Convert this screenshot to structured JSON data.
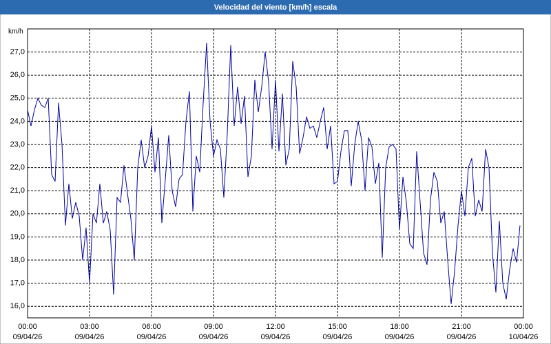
{
  "chart_data": {
    "type": "line",
    "title": "Velocidad del viento [km/h] escala",
    "y_unit": "km/h",
    "x": [
      0,
      10,
      20,
      30,
      40,
      50,
      60,
      70,
      80,
      90,
      100,
      110,
      120,
      130,
      140,
      150,
      160,
      170,
      180,
      190,
      200,
      210,
      220,
      230,
      240,
      250,
      260,
      270,
      280,
      290,
      300,
      310,
      320,
      330,
      340,
      350,
      360,
      370,
      380,
      390,
      400,
      410,
      420,
      430,
      440,
      450,
      460,
      470,
      480,
      490,
      500,
      510,
      520,
      530,
      540,
      550,
      560,
      570,
      580,
      590,
      600,
      610,
      620,
      630,
      640,
      650,
      660,
      670,
      680,
      690,
      700,
      710,
      720,
      730,
      740,
      750,
      760,
      770,
      780,
      790,
      800,
      810,
      820,
      830,
      840,
      850,
      860,
      870,
      880,
      890,
      900,
      910,
      920,
      930,
      940,
      950,
      960,
      970,
      980,
      990,
      1000,
      1010,
      1020,
      1030,
      1040,
      1050,
      1060,
      1070,
      1080,
      1090,
      1100,
      1110,
      1120,
      1130,
      1140,
      1150,
      1160,
      1170,
      1180,
      1190,
      1200,
      1210,
      1220,
      1230,
      1240,
      1250,
      1260,
      1270,
      1280,
      1290,
      1300,
      1310,
      1320,
      1330,
      1340,
      1350,
      1360,
      1370,
      1380,
      1390,
      1400,
      1410,
      1420,
      1430
    ],
    "series": [
      {
        "color": "#0000a0",
        "values": [
          24.5,
          23.8,
          24.5,
          25.0,
          24.7,
          24.6,
          25.0,
          21.7,
          21.4,
          24.8,
          23.0,
          19.5,
          21.3,
          19.8,
          20.5,
          19.9,
          18.0,
          19.4,
          17.0,
          20.0,
          19.6,
          21.3,
          19.6,
          20.1,
          19.3,
          16.5,
          20.7,
          20.5,
          22.1,
          20.9,
          19.8,
          18.0,
          22.0,
          23.2,
          22.0,
          22.5,
          23.8,
          21.8,
          23.3,
          19.6,
          21.5,
          23.4,
          21.0,
          20.3,
          21.5,
          21.7,
          24.0,
          25.3,
          20.1,
          22.5,
          21.8,
          24.8,
          27.4,
          24.0,
          22.5,
          23.2,
          22.8,
          20.7,
          23.5,
          27.3,
          23.8,
          25.5,
          23.9,
          25.1,
          21.6,
          22.5,
          25.8,
          24.4,
          25.5,
          27.0,
          25.7,
          22.8,
          25.8,
          22.7,
          25.2,
          22.1,
          22.8,
          26.6,
          25.5,
          22.6,
          23.3,
          24.2,
          23.7,
          23.8,
          23.3,
          24.0,
          24.6,
          22.8,
          23.8,
          21.3,
          21.4,
          22.7,
          23.6,
          23.6,
          21.2,
          23.0,
          24.0,
          23.2,
          21.0,
          23.3,
          22.9,
          21.3,
          22.2,
          18.1,
          22.0,
          22.9,
          23.0,
          22.8,
          19.3,
          21.6,
          20.5,
          18.7,
          18.5,
          22.7,
          20.5,
          18.3,
          17.8,
          20.6,
          21.8,
          21.4,
          19.6,
          20.1,
          18.0,
          16.1,
          17.5,
          19.5,
          21.0,
          19.9,
          22.0,
          22.4,
          19.9,
          20.6,
          20.1,
          22.8,
          22.0,
          18.3,
          16.6,
          19.7,
          17.0,
          16.3,
          17.6,
          18.5,
          17.9,
          19.5
        ]
      }
    ],
    "xlim": [
      0,
      1440
    ],
    "xticks": [
      {
        "value": 0,
        "label": "00:00",
        "date": "09/04/26"
      },
      {
        "value": 180,
        "label": "03:00",
        "date": "09/04/26"
      },
      {
        "value": 360,
        "label": "06:00",
        "date": "09/04/26"
      },
      {
        "value": 540,
        "label": "09:00",
        "date": "09/04/26"
      },
      {
        "value": 720,
        "label": "12:00",
        "date": "09/04/26"
      },
      {
        "value": 900,
        "label": "15:00",
        "date": "09/04/26"
      },
      {
        "value": 1080,
        "label": "18:00",
        "date": "09/04/26"
      },
      {
        "value": 1260,
        "label": "21:00",
        "date": "09/04/26"
      },
      {
        "value": 1440,
        "label": "00:00",
        "date": "10/04/26"
      }
    ],
    "ylim": [
      15.5,
      28.0
    ],
    "yticks": [
      {
        "value": 16,
        "label": "16,0"
      },
      {
        "value": 17,
        "label": "17,0"
      },
      {
        "value": 18,
        "label": "18,0"
      },
      {
        "value": 19,
        "label": "19,0"
      },
      {
        "value": 20,
        "label": "20,0"
      },
      {
        "value": 21,
        "label": "21,0"
      },
      {
        "value": 22,
        "label": "22,0"
      },
      {
        "value": 23,
        "label": "23,0"
      },
      {
        "value": 24,
        "label": "24,0"
      },
      {
        "value": 25,
        "label": "25,0"
      },
      {
        "value": 26,
        "label": "26,0"
      },
      {
        "value": 27,
        "label": "27,0"
      }
    ],
    "grid": true
  }
}
